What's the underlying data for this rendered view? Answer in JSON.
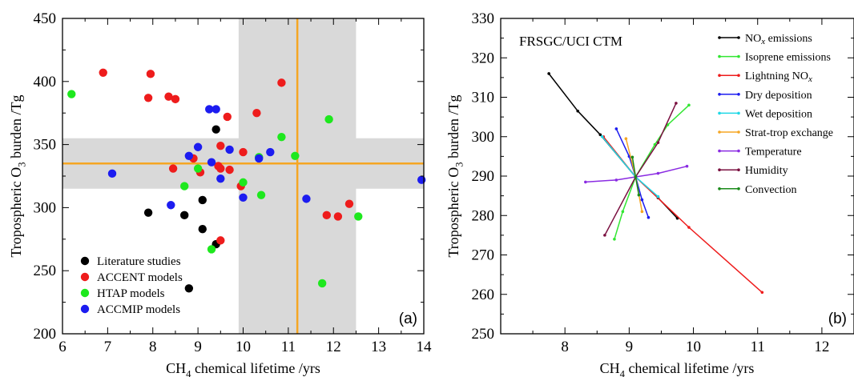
{
  "chart_data": [
    {
      "panel_label": "(a)",
      "type": "scatter",
      "xlabel_main": "CH",
      "xlabel_sub": "4",
      "xlabel_rest": " chemical lifetime /yrs",
      "ylabel_main": "Tropospheric O",
      "ylabel_sub": "3",
      "ylabel_rest": " burden /Tg",
      "xlim": [
        6,
        14
      ],
      "ylim": [
        200,
        450
      ],
      "xticks": [
        6,
        7,
        8,
        9,
        10,
        11,
        12,
        13,
        14
      ],
      "yticks": [
        200,
        250,
        300,
        350,
        400,
        450
      ],
      "legend_placement": "bottom-left",
      "reference": {
        "x_center": 11.2,
        "x_range": [
          9.9,
          12.5
        ],
        "y_center": 335,
        "y_range": [
          315,
          355
        ],
        "line_color": "#f5a623",
        "band_color": "#d9d9d9"
      },
      "series": [
        {
          "name": "Literature studies",
          "color": "#000000",
          "points": [
            [
              7.9,
              296
            ],
            [
              8.7,
              294
            ],
            [
              8.8,
              236
            ],
            [
              9.1,
              306
            ],
            [
              9.1,
              283
            ],
            [
              9.4,
              362
            ],
            [
              9.4,
              271
            ]
          ]
        },
        {
          "name": "ACCENT models",
          "color": "#ee1c1c",
          "points": [
            [
              6.9,
              407
            ],
            [
              7.9,
              387
            ],
            [
              7.95,
              406
            ],
            [
              8.35,
              388
            ],
            [
              8.5,
              386
            ],
            [
              8.45,
              331
            ],
            [
              8.9,
              339
            ],
            [
              9.05,
              328
            ],
            [
              9.45,
              333
            ],
            [
              9.5,
              331
            ],
            [
              9.5,
              349
            ],
            [
              9.5,
              274
            ],
            [
              9.65,
              372
            ],
            [
              9.7,
              330
            ],
            [
              9.95,
              317
            ],
            [
              10.0,
              344
            ],
            [
              10.3,
              375
            ],
            [
              10.85,
              399
            ],
            [
              11.85,
              294
            ],
            [
              12.1,
              293
            ],
            [
              12.35,
              303
            ]
          ]
        },
        {
          "name": "HTAP models",
          "color": "#1ee81e",
          "points": [
            [
              6.2,
              390
            ],
            [
              8.7,
              317
            ],
            [
              9.0,
              331
            ],
            [
              9.3,
              267
            ],
            [
              10.0,
              320
            ],
            [
              10.35,
              340
            ],
            [
              10.4,
              310
            ],
            [
              10.85,
              356
            ],
            [
              11.15,
              341
            ],
            [
              11.75,
              240
            ],
            [
              11.9,
              370
            ],
            [
              12.55,
              293
            ]
          ]
        },
        {
          "name": "ACCMIP models",
          "color": "#1c1cf0",
          "points": [
            [
              7.1,
              327
            ],
            [
              8.4,
              302
            ],
            [
              8.8,
              341
            ],
            [
              9.0,
              348
            ],
            [
              9.25,
              378
            ],
            [
              9.3,
              336
            ],
            [
              9.4,
              378
            ],
            [
              9.5,
              323
            ],
            [
              9.7,
              346
            ],
            [
              10.0,
              308
            ],
            [
              10.35,
              339
            ],
            [
              10.6,
              344
            ],
            [
              11.4,
              307
            ],
            [
              13.95,
              322
            ]
          ]
        }
      ]
    },
    {
      "panel_label": "(b)",
      "type": "line",
      "title": "FRSGC/UCI CTM",
      "xlabel_main": "CH",
      "xlabel_sub": "4",
      "xlabel_rest": " chemical lifetime /yrs",
      "ylabel_main": "Tropospheric O",
      "ylabel_sub": "3",
      "ylabel_rest": " burden /Tg",
      "xlim": [
        7,
        12.5
      ],
      "ylim": [
        250,
        330
      ],
      "xticks": [
        8,
        9,
        10,
        11,
        12
      ],
      "yticks": [
        250,
        260,
        270,
        280,
        290,
        300,
        310,
        320,
        330
      ],
      "legend_placement": "top-right",
      "series": [
        {
          "name": "NO",
          "name_sub": "x",
          "name_rest": " emissions",
          "color": "#000000",
          "points": [
            [
              7.75,
              316
            ],
            [
              8.2,
              306.5
            ],
            [
              8.55,
              300.5
            ],
            [
              9.1,
              289.8
            ],
            [
              9.45,
              284.5
            ],
            [
              9.75,
              279.3
            ]
          ]
        },
        {
          "name": "Isoprene emissions",
          "color": "#32e632",
          "points": [
            [
              8.77,
              274
            ],
            [
              8.9,
              281
            ],
            [
              9.1,
              289.8
            ],
            [
              9.4,
              298
            ],
            [
              9.6,
              303
            ],
            [
              9.93,
              308
            ]
          ]
        },
        {
          "name": "Lightning NO",
          "name_sub": "x",
          "name_rest": "",
          "color": "#ee1c1c",
          "points": [
            [
              8.6,
              300
            ],
            [
              9.1,
              289.8
            ],
            [
              9.93,
              277
            ],
            [
              11.07,
              260.5
            ]
          ]
        },
        {
          "name": "Dry deposition",
          "color": "#1c1cf0",
          "points": [
            [
              8.8,
              302
            ],
            [
              9.0,
              295
            ],
            [
              9.1,
              289.8
            ],
            [
              9.2,
              284
            ],
            [
              9.3,
              279.5
            ]
          ]
        },
        {
          "name": "Wet deposition",
          "color": "#1ed8e6",
          "points": [
            [
              8.58,
              300
            ],
            [
              9.1,
              289.8
            ],
            [
              9.45,
              284.8
            ]
          ]
        },
        {
          "name": "Strat-trop exchange",
          "color": "#f5a623",
          "points": [
            [
              8.95,
              299.5
            ],
            [
              9.1,
              289.8
            ],
            [
              9.2,
              281
            ]
          ]
        },
        {
          "name": "Temperature",
          "color": "#8a2be2",
          "points": [
            [
              8.32,
              288.5
            ],
            [
              8.8,
              289
            ],
            [
              9.1,
              289.8
            ],
            [
              9.45,
              290.7
            ],
            [
              9.9,
              292.5
            ]
          ]
        },
        {
          "name": "Humidity",
          "color": "#7a1040",
          "points": [
            [
              8.62,
              275
            ],
            [
              9.1,
              289.8
            ],
            [
              9.45,
              298.5
            ],
            [
              9.73,
              308.5
            ]
          ]
        },
        {
          "name": "Convection",
          "color": "#1a8a1a",
          "points": [
            [
              9.05,
              294.8
            ],
            [
              9.1,
              289.8
            ],
            [
              9.15,
              285.2
            ]
          ]
        }
      ]
    }
  ]
}
